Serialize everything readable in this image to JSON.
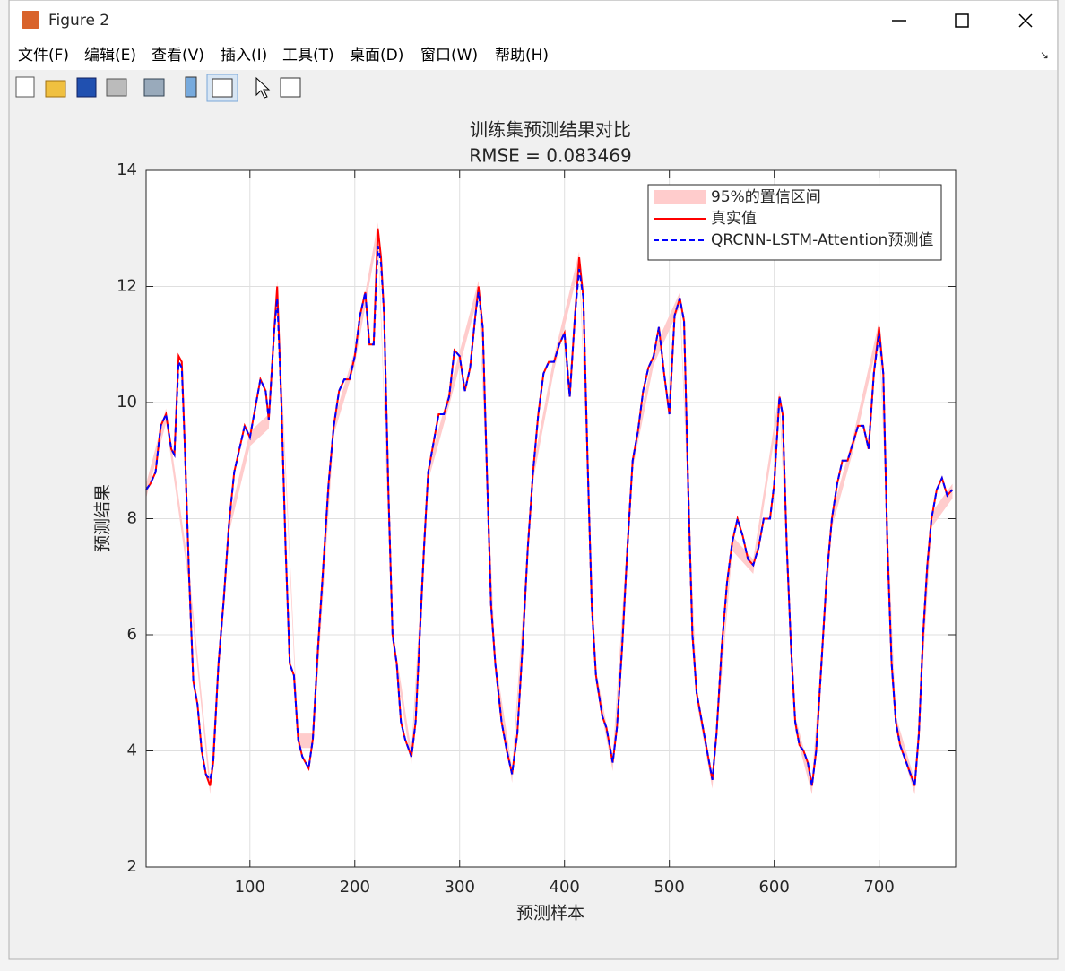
{
  "window": {
    "title": "Figure 2",
    "menu": [
      "文件(F)",
      "编辑(E)",
      "查看(V)",
      "插入(I)",
      "工具(T)",
      "桌面(D)",
      "窗口(W)",
      "帮助(H)"
    ]
  },
  "chart_data": {
    "type": "line",
    "title": "训练集预测结果对比",
    "subtitle": "RMSE = 0.083469",
    "xlabel": "预测样本",
    "ylabel": "预测结果",
    "xlim": [
      1,
      773
    ],
    "xticks": [
      100,
      200,
      300,
      400,
      500,
      600,
      700
    ],
    "ylim": [
      2,
      14
    ],
    "yticks": [
      2,
      4,
      6,
      8,
      10,
      12,
      14
    ],
    "grid": true,
    "legend": "northeast",
    "x": [
      1,
      5,
      10,
      15,
      20,
      25,
      28,
      32,
      35,
      38,
      42,
      46,
      50,
      54,
      58,
      62,
      65,
      70,
      75,
      80,
      85,
      90,
      95,
      100,
      105,
      110,
      115,
      118,
      123,
      126,
      130,
      134,
      138,
      142,
      146,
      150,
      156,
      160,
      165,
      170,
      175,
      180,
      185,
      190,
      195,
      200,
      205,
      210,
      214,
      218,
      222,
      225,
      228,
      232,
      236,
      240,
      244,
      248,
      254,
      258,
      262,
      266,
      270,
      275,
      280,
      285,
      290,
      295,
      300,
      305,
      310,
      315,
      318,
      322,
      326,
      330,
      334,
      340,
      345,
      350,
      355,
      360,
      365,
      370,
      375,
      380,
      385,
      390,
      395,
      400,
      405,
      410,
      414,
      418,
      422,
      426,
      430,
      436,
      440,
      446,
      450,
      455,
      460,
      465,
      470,
      475,
      480,
      485,
      490,
      495,
      500,
      505,
      510,
      514,
      518,
      522,
      526,
      530,
      536,
      541,
      545,
      550,
      555,
      560,
      565,
      570,
      575,
      580,
      585,
      590,
      596,
      600,
      605,
      608,
      612,
      616,
      620,
      624,
      628,
      632,
      636,
      640,
      645,
      650,
      655,
      660,
      665,
      670,
      675,
      680,
      685,
      690,
      695,
      700,
      704,
      708,
      712,
      716,
      720,
      724,
      730,
      734,
      738,
      742,
      746,
      750,
      755,
      760,
      765,
      770
    ],
    "series": [
      {
        "name": "95%的置信区间",
        "color": "#ffcccc",
        "x": [
          1,
          20,
          42,
          62,
          80,
          100,
          118,
          126,
          146,
          160,
          180,
          200,
          222,
          236,
          254,
          270,
          290,
          318,
          334,
          350,
          370,
          390,
          414,
          430,
          446,
          465,
          485,
          510,
          526,
          541,
          560,
          580,
          605,
          620,
          636,
          655,
          675,
          700,
          716,
          734,
          750,
          770
        ],
        "lower": [
          8.35,
          9.65,
          6.85,
          3.25,
          7.75,
          9.25,
          9.55,
          11.85,
          4.05,
          4.05,
          9.45,
          10.65,
          12.85,
          5.85,
          3.75,
          8.65,
          9.95,
          11.85,
          5.35,
          3.45,
          8.65,
          10.55,
          12.35,
          5.15,
          3.65,
          8.85,
          10.65,
          11.65,
          4.85,
          3.35,
          7.45,
          7.05,
          9.95,
          4.35,
          3.25,
          7.85,
          9.15,
          11.15,
          4.35,
          3.25,
          7.85,
          8.35
        ],
        "upper": [
          8.6,
          9.9,
          7.1,
          3.5,
          8.0,
          9.5,
          9.8,
          12.1,
          4.3,
          4.3,
          9.7,
          10.9,
          13.1,
          6.1,
          4.0,
          8.9,
          10.2,
          12.1,
          5.6,
          3.7,
          8.9,
          10.8,
          12.6,
          5.4,
          3.9,
          9.1,
          10.9,
          11.9,
          5.1,
          3.6,
          7.7,
          7.3,
          10.2,
          4.6,
          3.5,
          8.1,
          9.4,
          11.4,
          4.6,
          3.5,
          8.1,
          8.6
        ]
      },
      {
        "name": "真实值",
        "color": "#ff0000",
        "linestyle": "solid",
        "values": [
          8.5,
          8.6,
          8.8,
          9.6,
          9.8,
          9.2,
          9.1,
          10.8,
          10.7,
          9.2,
          7.0,
          5.2,
          4.8,
          4.0,
          3.6,
          3.4,
          3.8,
          5.5,
          6.6,
          7.9,
          8.8,
          9.2,
          9.6,
          9.4,
          9.9,
          10.4,
          10.2,
          9.7,
          11.2,
          12.0,
          10.0,
          7.5,
          5.5,
          5.3,
          4.2,
          3.9,
          3.7,
          4.2,
          5.8,
          7.2,
          8.6,
          9.6,
          10.2,
          10.4,
          10.4,
          10.8,
          11.5,
          11.9,
          11.0,
          11.0,
          13.0,
          12.5,
          11.5,
          8.5,
          6.0,
          5.5,
          4.5,
          4.2,
          3.9,
          4.5,
          6.0,
          7.5,
          8.8,
          9.3,
          9.8,
          9.8,
          10.1,
          10.9,
          10.8,
          10.2,
          10.6,
          11.5,
          12.0,
          11.3,
          8.8,
          6.5,
          5.5,
          4.5,
          4.0,
          3.6,
          4.3,
          5.8,
          7.5,
          8.8,
          9.8,
          10.5,
          10.7,
          10.7,
          11.0,
          11.2,
          10.1,
          11.5,
          12.5,
          11.8,
          9.0,
          6.5,
          5.3,
          4.6,
          4.4,
          3.8,
          4.4,
          5.8,
          7.5,
          9.0,
          9.5,
          10.2,
          10.6,
          10.8,
          11.3,
          10.5,
          9.8,
          11.5,
          11.8,
          11.4,
          8.5,
          6.0,
          5.0,
          4.6,
          4.0,
          3.5,
          4.3,
          5.8,
          6.9,
          7.6,
          8.0,
          7.7,
          7.3,
          7.2,
          7.5,
          8.0,
          8.0,
          8.6,
          10.1,
          9.8,
          7.5,
          5.8,
          4.5,
          4.1,
          4.0,
          3.8,
          3.4,
          4.0,
          5.5,
          7.0,
          8.0,
          8.6,
          9.0,
          9.0,
          9.3,
          9.6,
          9.6,
          9.2,
          10.5,
          11.3,
          10.5,
          7.5,
          5.5,
          4.5,
          4.1,
          3.9,
          3.6,
          3.4,
          4.3,
          6.0,
          7.2,
          8.0,
          8.5,
          8.7,
          8.4,
          8.5
        ]
      },
      {
        "name": "QRCNN-LSTM-Attention预测值",
        "color": "#0000ff",
        "linestyle": "dashed",
        "values": [
          8.5,
          8.6,
          8.8,
          9.6,
          9.8,
          9.2,
          9.1,
          10.7,
          10.6,
          9.2,
          7.0,
          5.2,
          4.8,
          4.0,
          3.6,
          3.5,
          3.8,
          5.5,
          6.6,
          7.9,
          8.8,
          9.2,
          9.6,
          9.4,
          9.9,
          10.4,
          10.2,
          9.7,
          11.2,
          11.8,
          10.0,
          7.5,
          5.5,
          5.3,
          4.2,
          3.9,
          3.7,
          4.2,
          5.8,
          7.2,
          8.6,
          9.6,
          10.2,
          10.4,
          10.4,
          10.8,
          11.5,
          11.9,
          11.0,
          11.0,
          12.7,
          12.4,
          11.5,
          8.5,
          6.0,
          5.5,
          4.5,
          4.2,
          3.9,
          4.5,
          6.0,
          7.5,
          8.8,
          9.3,
          9.8,
          9.8,
          10.1,
          10.9,
          10.8,
          10.2,
          10.6,
          11.5,
          11.9,
          11.3,
          8.8,
          6.5,
          5.5,
          4.5,
          4.0,
          3.6,
          4.3,
          5.8,
          7.5,
          8.8,
          9.8,
          10.5,
          10.7,
          10.7,
          11.0,
          11.2,
          10.1,
          11.5,
          12.3,
          11.8,
          9.0,
          6.5,
          5.3,
          4.6,
          4.4,
          3.8,
          4.4,
          5.8,
          7.5,
          9.0,
          9.5,
          10.2,
          10.6,
          10.8,
          11.3,
          10.5,
          9.8,
          11.5,
          11.8,
          11.4,
          8.5,
          6.0,
          5.0,
          4.6,
          4.0,
          3.5,
          4.3,
          5.8,
          6.9,
          7.6,
          8.0,
          7.7,
          7.3,
          7.2,
          7.5,
          8.0,
          8.0,
          8.6,
          10.1,
          9.8,
          7.5,
          5.8,
          4.5,
          4.1,
          4.0,
          3.8,
          3.4,
          4.0,
          5.5,
          7.0,
          8.0,
          8.6,
          9.0,
          9.0,
          9.3,
          9.6,
          9.6,
          9.2,
          10.5,
          11.2,
          10.5,
          7.5,
          5.5,
          4.5,
          4.1,
          3.9,
          3.6,
          3.4,
          4.3,
          6.0,
          7.2,
          8.0,
          8.5,
          8.7,
          8.4,
          8.5
        ]
      }
    ]
  }
}
